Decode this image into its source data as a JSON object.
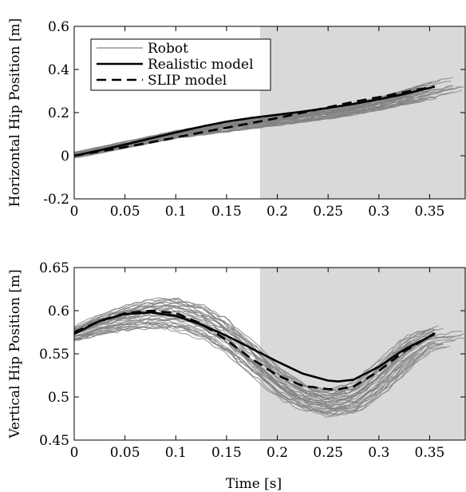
{
  "shade_color": "#d9d9d9",
  "robot_color": "#808080",
  "chart_data": [
    {
      "type": "line",
      "ylabel": "Horizontal Hip Position [m]",
      "xlabel": "",
      "xlim": [
        0,
        0.385
      ],
      "ylim": [
        -0.2,
        0.6
      ],
      "xticks": [
        0,
        0.05,
        0.1,
        0.15,
        0.2,
        0.25,
        0.3,
        0.35
      ],
      "xtick_labels": [
        "0",
        "0.05",
        "0.1",
        "0.15",
        "0.2",
        "0.25",
        "0.3",
        "0.35"
      ],
      "yticks": [
        -0.2,
        0,
        0.2,
        0.4,
        0.6
      ],
      "ytick_labels": [
        "-0.2",
        "0",
        "0.2",
        "0.4",
        "0.6"
      ],
      "shaded_region": [
        0.183,
        0.385
      ],
      "legend": {
        "position": "top-left",
        "entries": [
          "Robot",
          "Realistic model",
          "SLIP model"
        ]
      },
      "robot_band": {
        "name": "Robot",
        "x": [
          0,
          0.05,
          0.1,
          0.15,
          0.2,
          0.25,
          0.3,
          0.35,
          0.385
        ],
        "lower": [
          -0.01,
          0.035,
          0.08,
          0.11,
          0.14,
          0.17,
          0.21,
          0.26,
          0.3
        ],
        "upper": [
          0.015,
          0.065,
          0.115,
          0.16,
          0.185,
          0.22,
          0.27,
          0.34,
          0.38
        ]
      },
      "series": [
        {
          "name": "Realistic model",
          "style": "solid",
          "x": [
            0,
            0.025,
            0.05,
            0.075,
            0.1,
            0.125,
            0.15,
            0.175,
            0.2,
            0.225,
            0.25,
            0.275,
            0.3,
            0.325,
            0.355
          ],
          "y": [
            0,
            0.025,
            0.052,
            0.08,
            0.108,
            0.135,
            0.158,
            0.176,
            0.19,
            0.205,
            0.222,
            0.24,
            0.262,
            0.286,
            0.32
          ]
        },
        {
          "name": "SLIP model",
          "style": "dashed",
          "x": [
            0,
            0.025,
            0.05,
            0.075,
            0.1,
            0.125,
            0.15,
            0.175,
            0.2,
            0.225,
            0.25,
            0.275,
            0.3,
            0.325,
            0.355
          ],
          "y": [
            0,
            0.02,
            0.04,
            0.062,
            0.085,
            0.108,
            0.13,
            0.152,
            0.175,
            0.2,
            0.225,
            0.25,
            0.272,
            0.295,
            0.322
          ]
        }
      ]
    },
    {
      "type": "line",
      "ylabel": "Vertical Hip Position [m]",
      "xlabel": "Time [s]",
      "xlim": [
        0,
        0.385
      ],
      "ylim": [
        0.45,
        0.65
      ],
      "xticks": [
        0,
        0.05,
        0.1,
        0.15,
        0.2,
        0.25,
        0.3,
        0.35
      ],
      "xtick_labels": [
        "0",
        "0.05",
        "0.1",
        "0.15",
        "0.2",
        "0.25",
        "0.3",
        "0.35"
      ],
      "yticks": [
        0.45,
        0.5,
        0.55,
        0.6,
        0.65
      ],
      "ytick_labels": [
        "0.45",
        "0.5",
        "0.55",
        "0.6",
        "0.65"
      ],
      "shaded_region": [
        0.183,
        0.385
      ],
      "robot_band": {
        "name": "Robot",
        "x": [
          0,
          0.025,
          0.05,
          0.075,
          0.1,
          0.125,
          0.15,
          0.175,
          0.2,
          0.225,
          0.25,
          0.275,
          0.3,
          0.325,
          0.35,
          0.385
        ],
        "lower": [
          0.565,
          0.573,
          0.577,
          0.58,
          0.578,
          0.568,
          0.55,
          0.525,
          0.5,
          0.485,
          0.478,
          0.482,
          0.502,
          0.53,
          0.555,
          0.56
        ],
        "upper": [
          0.58,
          0.595,
          0.605,
          0.612,
          0.615,
          0.607,
          0.59,
          0.563,
          0.535,
          0.515,
          0.508,
          0.515,
          0.54,
          0.568,
          0.58,
          0.585
        ]
      },
      "series": [
        {
          "name": "Realistic model",
          "style": "solid",
          "x": [
            0,
            0.025,
            0.05,
            0.075,
            0.1,
            0.125,
            0.15,
            0.175,
            0.2,
            0.225,
            0.25,
            0.26,
            0.275,
            0.3,
            0.325,
            0.355
          ],
          "y": [
            0.573,
            0.588,
            0.596,
            0.598,
            0.594,
            0.584,
            0.571,
            0.556,
            0.541,
            0.527,
            0.519,
            0.518,
            0.52,
            0.535,
            0.555,
            0.573
          ]
        },
        {
          "name": "SLIP model",
          "style": "dashed",
          "x": [
            0,
            0.025,
            0.05,
            0.075,
            0.1,
            0.125,
            0.15,
            0.175,
            0.2,
            0.225,
            0.25,
            0.26,
            0.275,
            0.3,
            0.325,
            0.355
          ],
          "y": [
            0.575,
            0.588,
            0.597,
            0.6,
            0.597,
            0.585,
            0.566,
            0.544,
            0.525,
            0.513,
            0.509,
            0.509,
            0.512,
            0.53,
            0.553,
            0.574
          ]
        }
      ]
    }
  ]
}
